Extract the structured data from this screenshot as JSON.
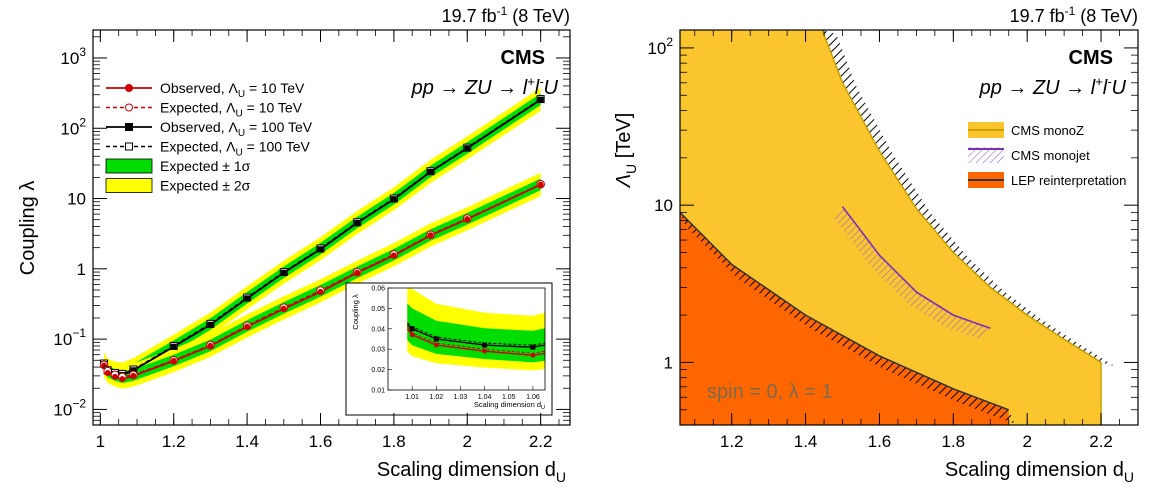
{
  "chart_data": [
    {
      "type": "line",
      "lumi": "19.7 fb",
      "lumi_sup": "-1",
      "energy": " (8 TeV)",
      "cms_label": "CMS",
      "process": {
        "p1": "pp → ZU → l",
        "sup1": "+",
        "p2": "l",
        "sup2": "-",
        "p3": "U"
      },
      "ylabel": "Coupling λ",
      "xlabel": "Scaling dimension d",
      "xlabel_sub": "U",
      "yscale": "log",
      "xlim": [
        0.98,
        2.28
      ],
      "ylim": [
        0.006,
        2500
      ],
      "x_ticks": [
        "1",
        "1.2",
        "1.4",
        "1.6",
        "1.8",
        "2",
        "2.2"
      ],
      "y_ticks": [
        {
          "v": 0.01,
          "base": "10",
          "exp": "−2"
        },
        {
          "v": 0.1,
          "base": "10",
          "exp": "−1"
        },
        {
          "v": 1,
          "base": "1",
          "exp": ""
        },
        {
          "v": 10,
          "base": "10",
          "exp": ""
        },
        {
          "v": 100,
          "base": "10",
          "exp": "2"
        },
        {
          "v": 1000,
          "base": "10",
          "exp": "3"
        }
      ],
      "legend": [
        {
          "label": "Observed, Λ",
          "sub": "U",
          "rest": " = 10 TeV",
          "style": "obs10"
        },
        {
          "label": "Expected, Λ",
          "sub": "U",
          "rest": " = 10 TeV",
          "style": "exp10"
        },
        {
          "label": "Observed, Λ",
          "sub": "U",
          "rest": " = 100 TeV",
          "style": "obs100"
        },
        {
          "label": "Expected, Λ",
          "sub": "U",
          "rest": " = 100 TeV",
          "style": "exp100"
        },
        {
          "label": "Expected ± 1σ",
          "sub": "",
          "rest": "",
          "style": "band1"
        },
        {
          "label": "Expected ± 2σ",
          "sub": "",
          "rest": "",
          "style": "band2"
        }
      ],
      "x": [
        1.01,
        1.02,
        1.04,
        1.06,
        1.09,
        1.2,
        1.3,
        1.4,
        1.5,
        1.6,
        1.7,
        1.8,
        1.9,
        2.0,
        2.2
      ],
      "series": [
        {
          "name": "Observed, ΛU = 10 TeV",
          "values": [
            0.042,
            0.033,
            0.029,
            0.027,
            0.03,
            0.049,
            0.08,
            0.15,
            0.27,
            0.47,
            0.88,
            1.55,
            3.0,
            5.1,
            15.8
          ],
          "color": "#cc0000"
        },
        {
          "name": "Expected, ΛU = 10 TeV",
          "values": [
            0.043,
            0.035,
            0.031,
            0.029,
            0.031,
            0.05,
            0.082,
            0.155,
            0.28,
            0.49,
            0.9,
            1.6,
            3.05,
            5.2,
            16.0
          ],
          "color": "#cc0000"
        },
        {
          "name": "Observed, ΛU = 100 TeV",
          "values": [
            0.044,
            0.035,
            0.032,
            0.031,
            0.036,
            0.078,
            0.16,
            0.38,
            0.88,
            1.9,
            4.5,
            9.8,
            24,
            52,
            255
          ],
          "color": "#000000"
        },
        {
          "name": "Expected, ΛU = 100 TeV",
          "values": [
            0.045,
            0.036,
            0.033,
            0.032,
            0.037,
            0.08,
            0.165,
            0.39,
            0.9,
            1.95,
            4.6,
            10,
            24.5,
            53,
            260
          ],
          "color": "#000000"
        }
      ],
      "inset": {
        "ylabel": "Coupling λ",
        "xlabel": "Scaling dimension d",
        "xlabel_sub": "U",
        "xlim": [
          1.0,
          1.065
        ],
        "ylim": [
          0.01,
          0.06
        ],
        "x_ticks": [
          "1.01",
          "1.02",
          "1.03",
          "1.04",
          "1.05",
          "1.06"
        ],
        "y_ticks": [
          "0.01",
          "0.02",
          "0.03",
          "0.04",
          "0.05",
          "0.06"
        ],
        "x": [
          1.008,
          1.01,
          1.02,
          1.04,
          1.06,
          1.065
        ],
        "series": [
          {
            "name": "Observed, ΛU = 10 TeV",
            "values": [
              0.04,
              0.037,
              0.032,
              0.029,
              0.027,
              0.028
            ]
          },
          {
            "name": "Expected, ΛU = 10 TeV",
            "values": [
              0.041,
              0.038,
              0.033,
              0.03,
              0.028,
              0.029
            ]
          },
          {
            "name": "Observed, ΛU = 100 TeV",
            "values": [
              0.042,
              0.04,
              0.035,
              0.032,
              0.031,
              0.032
            ]
          },
          {
            "name": "Expected, ΛU = 100 TeV",
            "values": [
              0.043,
              0.041,
              0.036,
              0.033,
              0.032,
              0.033
            ]
          }
        ]
      }
    },
    {
      "type": "area",
      "lumi": "19.7 fb",
      "lumi_sup": "-1",
      "energy": " (8 TeV)",
      "cms_label": "CMS",
      "process": {
        "p1": "pp → ZU → l",
        "sup1": "+",
        "p2": "l",
        "sup2": "-",
        "p3": "U"
      },
      "ylabel": "Λ",
      "ylabel_sub": "U",
      "ylabel_rest": " [TeV]",
      "xlabel": "Scaling dimension d",
      "xlabel_sub": "U",
      "yscale": "log",
      "xlim": [
        1.06,
        2.3
      ],
      "ylim": [
        0.4,
        130
      ],
      "x_ticks": [
        "1.2",
        "1.4",
        "1.6",
        "1.8",
        "2",
        "2.2"
      ],
      "y_ticks": [
        {
          "v": 1,
          "base": "1",
          "exp": ""
        },
        {
          "v": 10,
          "base": "10",
          "exp": ""
        },
        {
          "v": 100,
          "base": "10",
          "exp": "2"
        }
      ],
      "annotation": "spin = 0, λ = 1",
      "legend": [
        {
          "label": "CMS monoZ",
          "style": "monoz"
        },
        {
          "label": "CMS monojet",
          "style": "monojet"
        },
        {
          "label": "LEP reinterpretation",
          "style": "lep"
        }
      ],
      "colors": {
        "monoz": "#fbc52e",
        "monoz_line": "#c8a000",
        "lep": "#ff6600",
        "lep_line": "#333333",
        "monojet": "#7a2fb8"
      },
      "series": [
        {
          "name": "CMS monoZ",
          "x": [
            1.445,
            1.5,
            1.6,
            1.7,
            1.8,
            1.9,
            2.0,
            2.1,
            2.2
          ],
          "values": [
            130,
            60,
            22,
            9.5,
            5.0,
            3.0,
            2.0,
            1.4,
            1.0
          ]
        },
        {
          "name": "CMS monojet",
          "x": [
            1.5,
            1.6,
            1.7,
            1.8,
            1.9
          ],
          "values": [
            9.8,
            4.8,
            2.8,
            2.0,
            1.65
          ]
        },
        {
          "name": "LEP reinterpretation",
          "x": [
            1.06,
            1.2,
            1.4,
            1.6,
            1.8,
            1.95
          ],
          "values": [
            9.0,
            4.2,
            2.0,
            1.1,
            0.68,
            0.5
          ]
        }
      ]
    }
  ]
}
